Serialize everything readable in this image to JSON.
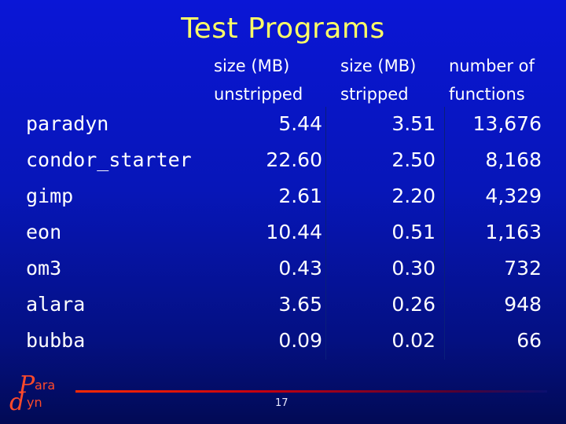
{
  "slide": {
    "title": "Test Programs",
    "page_number": "17"
  },
  "logo": {
    "text_para": "ara",
    "text_dyn": "yn",
    "letter_p": "P",
    "letter_d": "d",
    "icon": "paradyn-logo"
  },
  "table": {
    "headers": [
      {
        "line1": "size (MB)",
        "line2": "unstripped"
      },
      {
        "line1": "size (MB)",
        "line2": "stripped"
      },
      {
        "line1": "number of",
        "line2": "functions"
      }
    ],
    "rows": [
      {
        "name": "paradyn",
        "unstripped": "5.44",
        "stripped": "3.51",
        "functions": "13,676"
      },
      {
        "name": "condor_starter",
        "unstripped": "22.60",
        "stripped": "2.50",
        "functions": "8,168"
      },
      {
        "name": "gimp",
        "unstripped": "2.61",
        "stripped": "2.20",
        "functions": "4,329"
      },
      {
        "name": "eon",
        "unstripped": "10.44",
        "stripped": "0.51",
        "functions": "1,163"
      },
      {
        "name": "om3",
        "unstripped": "0.43",
        "stripped": "0.30",
        "functions": "732"
      },
      {
        "name": "alara",
        "unstripped": "3.65",
        "stripped": "0.26",
        "functions": "948"
      },
      {
        "name": "bubba",
        "unstripped": "0.09",
        "stripped": "0.02",
        "functions": "66"
      }
    ]
  },
  "colors": {
    "title": "#ffff66",
    "text": "#ffffff",
    "accent_line": "#ff2a00",
    "background": "#0716b8"
  }
}
